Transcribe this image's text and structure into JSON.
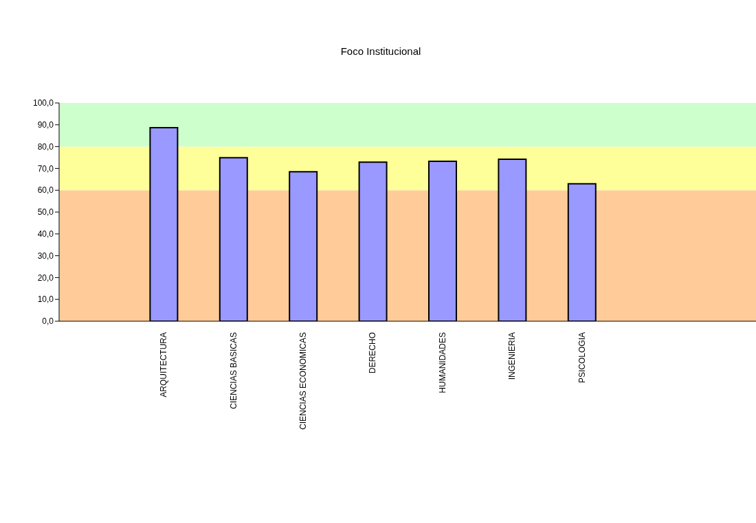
{
  "chart_data": {
    "type": "bar",
    "title": "Foco Institucional",
    "categories": [
      null,
      "ARQUITECTURA",
      "CIENCIAS BASICAS",
      "CIENCIAS ECONOMICAS",
      "DERECHO",
      "HUMANIDADES",
      "INGENIERIA",
      "PSICOLOGIA",
      null,
      null
    ],
    "values": [
      null,
      88.7,
      74.9,
      68.5,
      72.9,
      73.3,
      74.2,
      63.0,
      null,
      null
    ],
    "color": "#9999ff",
    "ylim": [
      0,
      100
    ],
    "yticks": [
      {
        "value": 0,
        "label": "0,0"
      },
      {
        "value": 10,
        "label": "10,0"
      },
      {
        "value": 20,
        "label": "20,0"
      },
      {
        "value": 30,
        "label": "30,0"
      },
      {
        "value": 40,
        "label": "40,0"
      },
      {
        "value": 50,
        "label": "50,0"
      },
      {
        "value": 60,
        "label": "60,0"
      },
      {
        "value": 70,
        "label": "70,0"
      },
      {
        "value": 80,
        "label": "80,0"
      },
      {
        "value": 90,
        "label": "90,0"
      },
      {
        "value": 100,
        "label": "100,0"
      }
    ],
    "bands": [
      {
        "axis": "y",
        "from": 0,
        "to": 60,
        "color": "#ffcc99"
      },
      {
        "axis": "y",
        "from": 60,
        "to": 80,
        "color": "#ffff99"
      },
      {
        "axis": "y",
        "from": 80,
        "to": 100,
        "color": "#ccffcc"
      }
    ],
    "grid": false,
    "legend": false
  }
}
